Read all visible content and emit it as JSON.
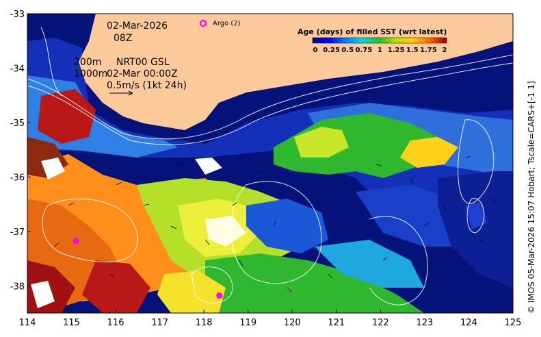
{
  "map": {
    "date_label": "02-Mar-2026",
    "time_label": "08Z",
    "contour_label_200": "200m",
    "contour_label_1000": "1000m",
    "product_label": "NRT00 GSL",
    "product_time": "02-Mar 00:00Z",
    "vector_scale_label": "0.5m/s (1kt 24h)",
    "argo_legend_label": "Argo (2)",
    "colorbar_title": "Age (days) of filled SST (wrt latest)",
    "colorbar_ticks": [
      "0",
      "0.25",
      "0.5",
      "0.75",
      "1",
      "1.25",
      "1.5",
      "1.75",
      "2"
    ],
    "credit": "© IMOS 05-Mar-2026 15:07 Hobart; Tscale=CARS+[-1 1]",
    "x_ticks": [
      "114",
      "115",
      "116",
      "117",
      "118",
      "119",
      "120",
      "121",
      "122",
      "123",
      "124",
      "125"
    ],
    "y_ticks": [
      "-33",
      "-34",
      "-35",
      "-36",
      "-37",
      "-38"
    ],
    "x_range": [
      114,
      125
    ],
    "y_range": [
      -38.5,
      -33
    ],
    "argo_floats": [
      {
        "lon": 115.1,
        "lat": -37.18
      },
      {
        "lon": 118.35,
        "lat": -38.18
      }
    ],
    "colors": {
      "land": "#fdcb9b",
      "deep_navy": "#05127a",
      "argo_marker": "#ff00ff"
    }
  }
}
